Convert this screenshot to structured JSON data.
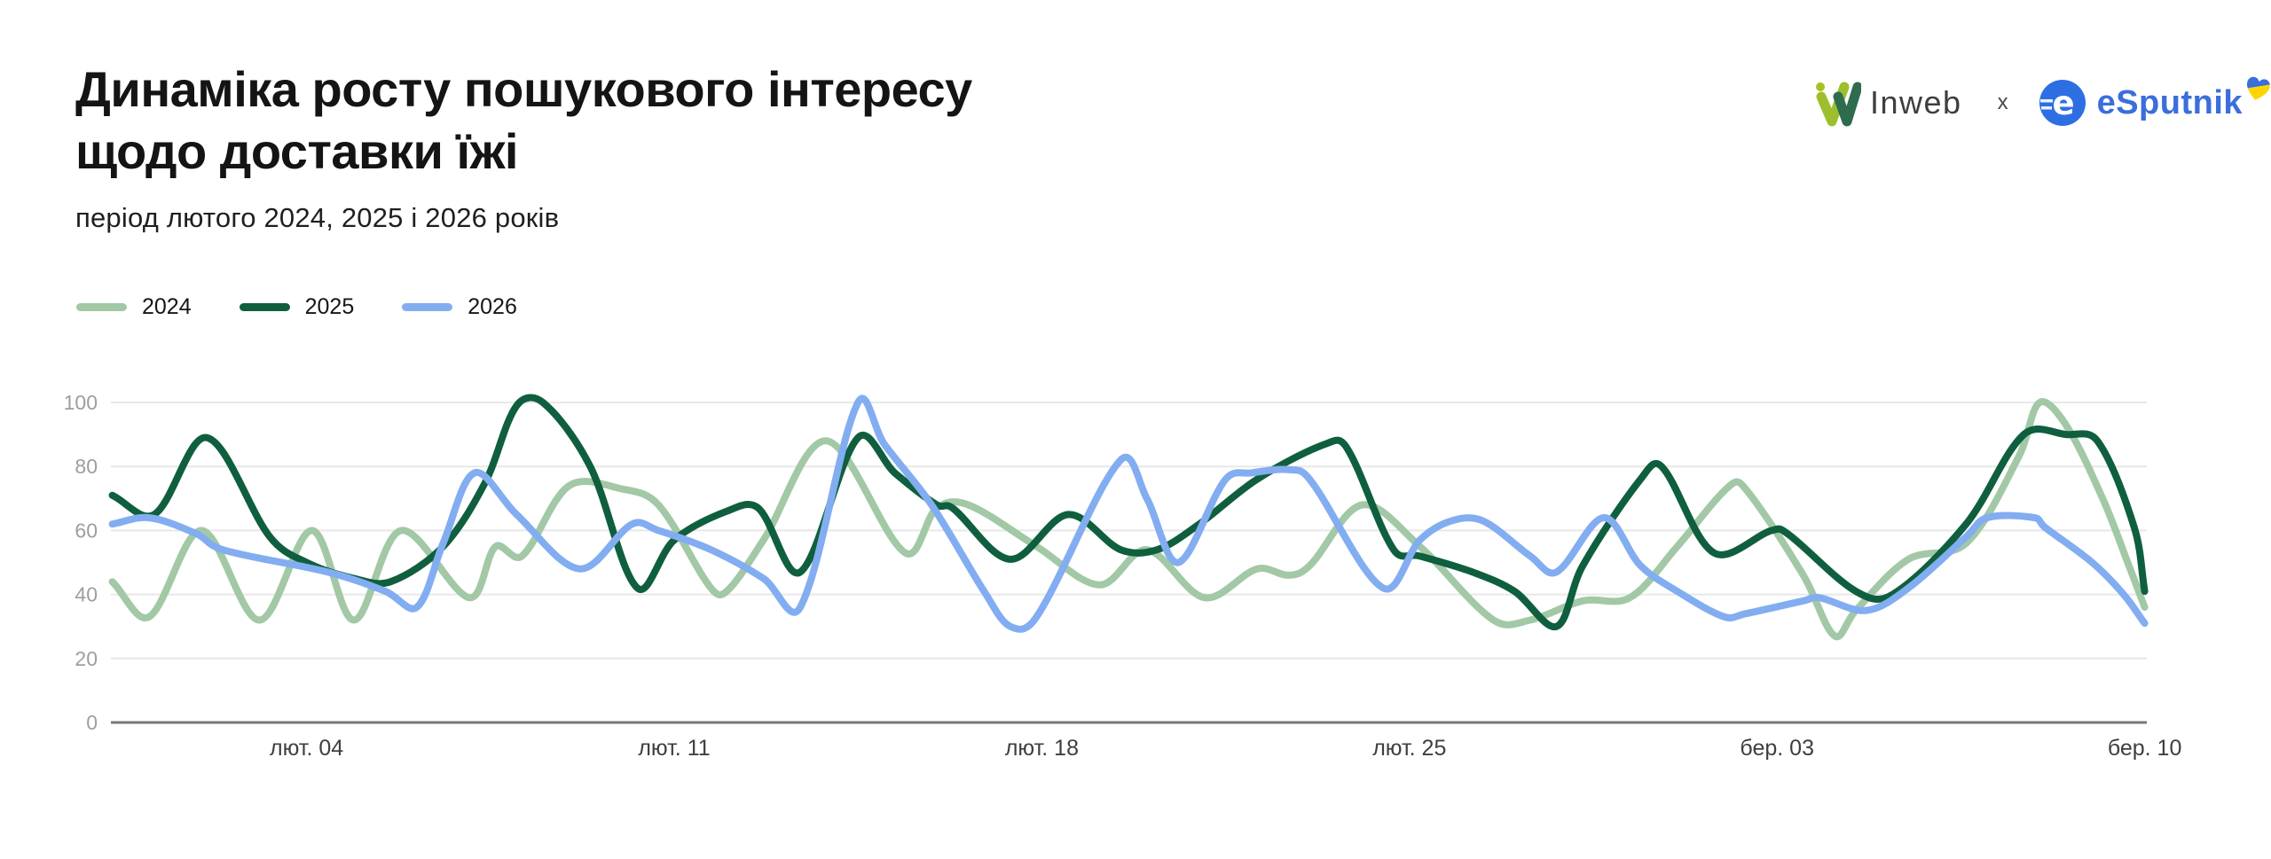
{
  "header": {
    "title_line1": "Динаміка росту пошукового інтересу",
    "title_line2": "щодо доставки їжі",
    "subtitle": "період лютого 2024, 2025 і 2026 років"
  },
  "branding": {
    "inweb_label": "Inweb",
    "separator": "x",
    "esputnik_label": "eSputnik",
    "esputnik_icon_letter": "e",
    "inweb_text_color": "#3e3e3e",
    "inweb_mark_light_green": "#9dbf2e",
    "inweb_mark_dark_green": "#2e6b4f",
    "esputnik_blue": "#3a6edc",
    "heart_blue": "#3a6edc",
    "heart_yellow": "#ffd500"
  },
  "legend": [
    {
      "label": "2024",
      "color": "#a2c8a6"
    },
    {
      "label": "2025",
      "color": "#0f5f3f"
    },
    {
      "label": "2026",
      "color": "#83adf1"
    }
  ],
  "chart_data": {
    "type": "line",
    "title": "Динаміка росту пошукового інтересу щодо доставки їжі",
    "subtitle": "період лютого 2024, 2025 і 2026 років",
    "xlabel": "",
    "ylabel": "",
    "x_unit": "days since Feb 01 (лют. = лютий/February, бер. = березень/March)",
    "ylim": [
      0,
      100
    ],
    "xlim": [
      -0.7,
      38
    ],
    "grid": "horizontal",
    "legend_position": "top-left",
    "y_ticks": [
      0,
      20,
      40,
      60,
      80,
      100
    ],
    "x_ticks": [
      {
        "x": 3,
        "label": "лют. 04"
      },
      {
        "x": 10,
        "label": "лют. 11"
      },
      {
        "x": 17,
        "label": "лют. 18"
      },
      {
        "x": 24,
        "label": "лют. 25"
      },
      {
        "x": 31,
        "label": "бер. 03"
      },
      {
        "x": 38,
        "label": "бер. 10"
      }
    ],
    "series": [
      {
        "name": "2024",
        "color": "#a2c8a6",
        "points": [
          [
            -0.7,
            44
          ],
          [
            0,
            33
          ],
          [
            1,
            60
          ],
          [
            2.1,
            32
          ],
          [
            3.1,
            60
          ],
          [
            3.9,
            32
          ],
          [
            4.8,
            60
          ],
          [
            6.1,
            39
          ],
          [
            6.6,
            55
          ],
          [
            7.1,
            52
          ],
          [
            8,
            74
          ],
          [
            9,
            73
          ],
          [
            9.7,
            68
          ],
          [
            10.7,
            42
          ],
          [
            11,
            41
          ],
          [
            11.7,
            57
          ],
          [
            12.9,
            88
          ],
          [
            14.4,
            53
          ],
          [
            15,
            67
          ],
          [
            15.6,
            68
          ],
          [
            16.9,
            55
          ],
          [
            18.1,
            43
          ],
          [
            19,
            54
          ],
          [
            20.1,
            39
          ],
          [
            21.1,
            48
          ],
          [
            21.7,
            46
          ],
          [
            22.1,
            49
          ],
          [
            23.1,
            68
          ],
          [
            24.2,
            55
          ],
          [
            25.6,
            32
          ],
          [
            26.3,
            32
          ],
          [
            27.3,
            38
          ],
          [
            28.2,
            39
          ],
          [
            29.1,
            55
          ],
          [
            30.1,
            74
          ],
          [
            30.4,
            73
          ],
          [
            31.5,
            46
          ],
          [
            32.1,
            27
          ],
          [
            32.5,
            35
          ],
          [
            33.5,
            51
          ],
          [
            34.6,
            56
          ],
          [
            35.6,
            83
          ],
          [
            36,
            100
          ],
          [
            36.5,
            93
          ],
          [
            37.2,
            70
          ],
          [
            37.7,
            49
          ],
          [
            38,
            36
          ]
        ]
      },
      {
        "name": "2025",
        "color": "#0f5f3f",
        "points": [
          [
            -0.7,
            71
          ],
          [
            0.1,
            65
          ],
          [
            1.1,
            89
          ],
          [
            2.3,
            58
          ],
          [
            3,
            50
          ],
          [
            3.9,
            45
          ],
          [
            4.6,
            44
          ],
          [
            5.6,
            55
          ],
          [
            6.4,
            75
          ],
          [
            7,
            99
          ],
          [
            7.5,
            100
          ],
          [
            8.4,
            80
          ],
          [
            9.3,
            42
          ],
          [
            10,
            57
          ],
          [
            11,
            66
          ],
          [
            11.6,
            67
          ],
          [
            12.4,
            47
          ],
          [
            13.5,
            89
          ],
          [
            14.2,
            78
          ],
          [
            15,
            68
          ],
          [
            15.3,
            67
          ],
          [
            16.4,
            51
          ],
          [
            17.5,
            65
          ],
          [
            18.5,
            54
          ],
          [
            19.2,
            54
          ],
          [
            20,
            62
          ],
          [
            21.1,
            76
          ],
          [
            22.4,
            87
          ],
          [
            22.8,
            86
          ],
          [
            23.7,
            54
          ],
          [
            24.2,
            52
          ],
          [
            25.2,
            47
          ],
          [
            26,
            41
          ],
          [
            26.8,
            30
          ],
          [
            27.3,
            49
          ],
          [
            28.4,
            76
          ],
          [
            28.8,
            80
          ],
          [
            29.8,
            53
          ],
          [
            30.9,
            60
          ],
          [
            31.2,
            59
          ],
          [
            32.5,
            41
          ],
          [
            33.2,
            40
          ],
          [
            34.6,
            62
          ],
          [
            35.7,
            90
          ],
          [
            36.5,
            90
          ],
          [
            37.1,
            88
          ],
          [
            37.8,
            61
          ],
          [
            38,
            41
          ]
        ]
      },
      {
        "name": "2026",
        "color": "#83adf1",
        "points": [
          [
            -0.7,
            62
          ],
          [
            0,
            64
          ],
          [
            0.9,
            59
          ],
          [
            1.4,
            54
          ],
          [
            3.4,
            47
          ],
          [
            4.5,
            41
          ],
          [
            5.1,
            36
          ],
          [
            5.6,
            56
          ],
          [
            6.2,
            78
          ],
          [
            7,
            65
          ],
          [
            8.2,
            48
          ],
          [
            9.2,
            62
          ],
          [
            9.7,
            60
          ],
          [
            10.7,
            54
          ],
          [
            11.7,
            45
          ],
          [
            12.4,
            36
          ],
          [
            13.5,
            100
          ],
          [
            14,
            87
          ],
          [
            14.9,
            68
          ],
          [
            15.9,
            41
          ],
          [
            16.4,
            30
          ],
          [
            16.9,
            33
          ],
          [
            18.5,
            82
          ],
          [
            19,
            70
          ],
          [
            19.6,
            50
          ],
          [
            20.5,
            76
          ],
          [
            21,
            78
          ],
          [
            21.7,
            79
          ],
          [
            22.1,
            76
          ],
          [
            23.5,
            42
          ],
          [
            24.2,
            57
          ],
          [
            24.8,
            63
          ],
          [
            25.4,
            63
          ],
          [
            26.3,
            52
          ],
          [
            26.8,
            47
          ],
          [
            27.7,
            64
          ],
          [
            28.4,
            49
          ],
          [
            29.1,
            41
          ],
          [
            30,
            33
          ],
          [
            30.4,
            34
          ],
          [
            31.5,
            38
          ],
          [
            31.8,
            39
          ],
          [
            32.7,
            35
          ],
          [
            33.5,
            42
          ],
          [
            34.6,
            58
          ],
          [
            35,
            64
          ],
          [
            35.9,
            64
          ],
          [
            36.1,
            61
          ],
          [
            37,
            50
          ],
          [
            37.6,
            40
          ],
          [
            38,
            31
          ]
        ]
      }
    ],
    "style": {
      "background": "#ffffff",
      "gridline_color": "#e8e8e8",
      "zero_axis_color": "#777777",
      "y_tick_label_color": "#9e9e9e",
      "x_tick_label_color": "#3c4043",
      "line_width": 8
    }
  }
}
